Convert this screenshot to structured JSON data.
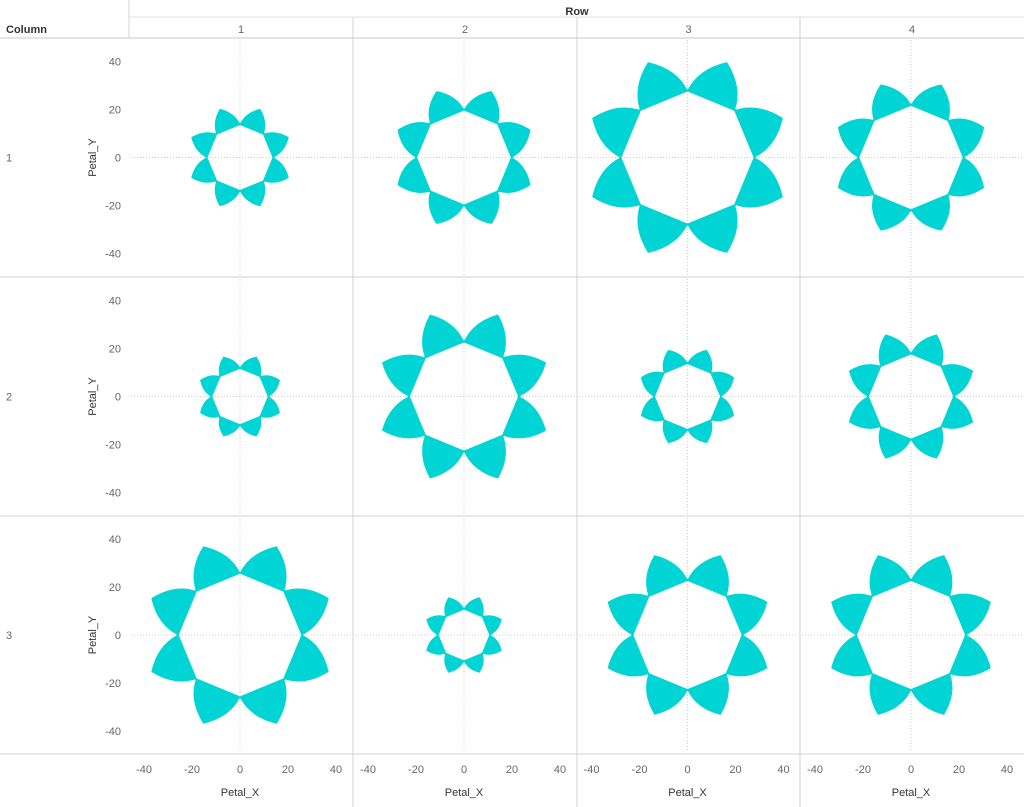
{
  "chart_data": {
    "type": "polygon-small-multiples",
    "column_field": "Row",
    "row_field": "Column",
    "column_labels": [
      "1",
      "2",
      "3",
      "4"
    ],
    "row_labels": [
      "1",
      "2",
      "3"
    ],
    "xlabel": "Petal_X",
    "ylabel": "Petal_Y",
    "x_ticks": [
      -40,
      -20,
      0,
      20,
      40
    ],
    "y_ticks": [
      40,
      20,
      0,
      -20,
      -40
    ],
    "xlim": [
      -47,
      47
    ],
    "ylim": [
      -47,
      47
    ],
    "petals": 8,
    "mark_color": "#00d4d4",
    "grid": "zero lines dotted",
    "flowers": [
      {
        "row": "1",
        "col": "1",
        "inner_radius": 14,
        "petal_tip": 22
      },
      {
        "row": "1",
        "col": "2",
        "inner_radius": 20,
        "petal_tip": 30
      },
      {
        "row": "1",
        "col": "3",
        "inner_radius": 28,
        "petal_tip": 43
      },
      {
        "row": "1",
        "col": "4",
        "inner_radius": 22,
        "petal_tip": 33
      },
      {
        "row": "2",
        "col": "1",
        "inner_radius": 12,
        "petal_tip": 18
      },
      {
        "row": "2",
        "col": "2",
        "inner_radius": 23,
        "petal_tip": 37
      },
      {
        "row": "2",
        "col": "3",
        "inner_radius": 14,
        "petal_tip": 21
      },
      {
        "row": "2",
        "col": "4",
        "inner_radius": 18,
        "petal_tip": 28
      },
      {
        "row": "3",
        "col": "1",
        "inner_radius": 26,
        "petal_tip": 40
      },
      {
        "row": "3",
        "col": "2",
        "inner_radius": 11,
        "petal_tip": 17
      },
      {
        "row": "3",
        "col": "3",
        "inner_radius": 23,
        "petal_tip": 36
      },
      {
        "row": "3",
        "col": "4",
        "inner_radius": 23,
        "petal_tip": 36
      }
    ]
  }
}
